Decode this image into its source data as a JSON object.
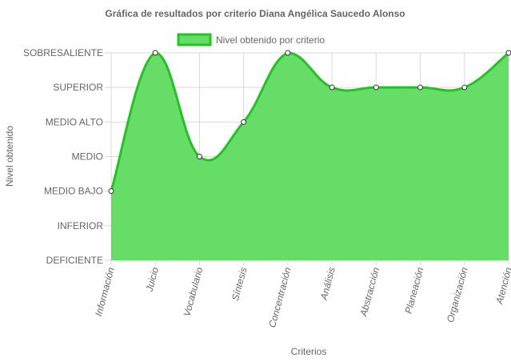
{
  "chart_data": {
    "type": "area",
    "title": "Gráfica de resultados por criterio Diana Angélica Saucedo Alonso",
    "xlabel": "Criterios",
    "ylabel": "Nivel obtenido",
    "legend": {
      "position": "top",
      "label": "Nivel obtenido por criterio"
    },
    "levels": [
      "DEFICIENTE",
      "INFERIOR",
      "MEDIO BAJO",
      "MEDIO",
      "MEDIO ALTO",
      "SUPERIOR",
      "SOBRESALIENTE"
    ],
    "categories": [
      "Información",
      "Juicio",
      "Vocabulario",
      "Síntesis",
      "Concentración",
      "Análisis",
      "Abstracción",
      "Planeación",
      "Organización",
      "Atención"
    ],
    "series": [
      {
        "name": "Nivel obtenido por criterio",
        "values": [
          2,
          6,
          3,
          4,
          6,
          5,
          5,
          5,
          5,
          6
        ]
      }
    ],
    "ylim": [
      0,
      6
    ],
    "grid": true,
    "colors": {
      "fill": "#66dd66",
      "line": "#22c322",
      "point_fill": "#ffffff",
      "point_stroke": "#333333"
    }
  }
}
